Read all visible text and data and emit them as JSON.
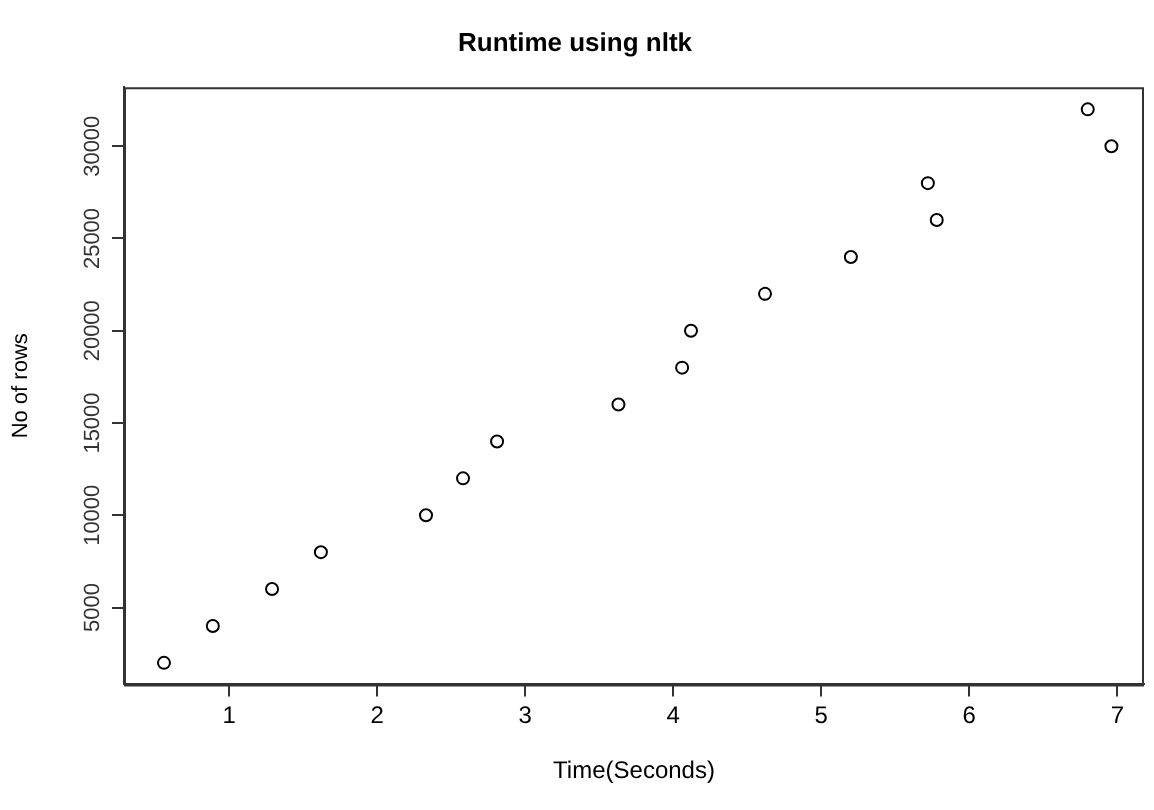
{
  "chart_data": {
    "type": "scatter",
    "title": "Runtime using nltk",
    "xlabel": "Time(Seconds)",
    "ylabel": "No of rows",
    "x": [
      0.56,
      0.89,
      1.29,
      1.62,
      2.33,
      2.58,
      2.81,
      3.63,
      4.06,
      4.12,
      4.62,
      5.2,
      5.72,
      5.78,
      6.8,
      6.96
    ],
    "values": [
      2000,
      4000,
      6000,
      8000,
      10000,
      12000,
      14000,
      16000,
      18000,
      20000,
      22000,
      24000,
      28000,
      26000,
      32000,
      30000
    ],
    "color": "#000000",
    "marker": "circle",
    "xlim": [
      0.29,
      7.18
    ],
    "xticks": [
      1,
      2,
      3,
      4,
      5,
      6,
      7
    ],
    "ylim": [
      833,
      33200
    ],
    "yticks": [
      5000,
      10000,
      15000,
      20000,
      25000,
      30000
    ],
    "grid": false,
    "legend": false
  }
}
